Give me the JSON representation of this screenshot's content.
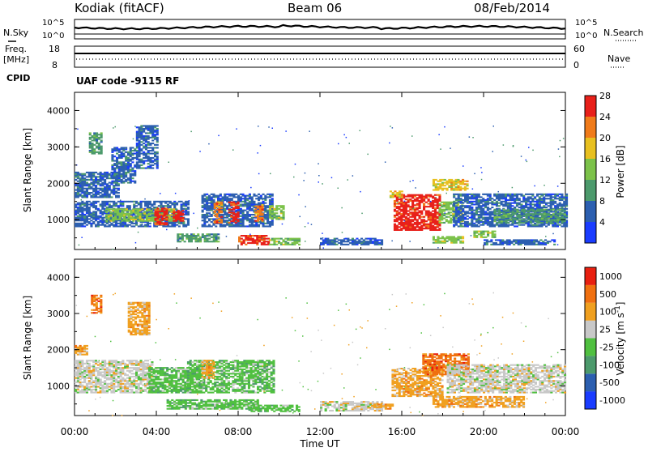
{
  "header": {
    "station": "Kodiak (fitACF)",
    "beam": "Beam 06",
    "date": "08/Feb/2014"
  },
  "left_labels": {
    "nsky": "N.Sky",
    "freq": "Freq.",
    "freq_unit": "[MHz]",
    "cpid": "CPID"
  },
  "right_labels": {
    "nsearch": "N.Search",
    "nave": "Nave"
  },
  "cpid_text": "UAF code -9115 RF",
  "noise_axis": {
    "top": "10^5",
    "bottom": "10^0",
    "right_top": "10^5",
    "right_bottom": "10^0"
  },
  "freq_axis": {
    "left_top": "18",
    "left_bottom": "8",
    "right_top": "60",
    "right_bottom": "0"
  },
  "chart_data": [
    {
      "type": "heatmap",
      "title": "",
      "ylabel": "Slant Range [km]",
      "xlabel": "",
      "ylim": [
        180,
        4500
      ],
      "yticks": [
        "1000",
        "2000",
        "3000",
        "4000"
      ],
      "colorbar": {
        "label": "Power [dB]",
        "ticks": [
          "4",
          "8",
          "12",
          "16",
          "20",
          "24",
          "28"
        ],
        "colors": [
          "#1a3cff",
          "#2c5fb0",
          "#4c9a6c",
          "#7cc24a",
          "#e8c020",
          "#f07b1a",
          "#e8201a"
        ]
      },
      "regions": [
        {
          "t0": 0.0,
          "t1": 5.6,
          "r0": 800,
          "r1": 1500,
          "level": 1
        },
        {
          "t0": 1.5,
          "t1": 5.0,
          "r0": 950,
          "r1": 1300,
          "level": 3
        },
        {
          "t0": 3.9,
          "t1": 4.5,
          "r0": 850,
          "r1": 1300,
          "level": 6
        },
        {
          "t0": 4.8,
          "t1": 5.3,
          "r0": 950,
          "r1": 1250,
          "level": 6
        },
        {
          "t0": 0.0,
          "t1": 2.2,
          "r0": 1600,
          "r1": 2300,
          "level": 1
        },
        {
          "t0": 0.7,
          "t1": 1.3,
          "r0": 2800,
          "r1": 3400,
          "level": 2
        },
        {
          "t0": 1.8,
          "t1": 3.0,
          "r0": 2000,
          "r1": 3000,
          "level": 1
        },
        {
          "t0": 3.0,
          "t1": 4.0,
          "r0": 2400,
          "r1": 3600,
          "level": 1
        },
        {
          "t0": 6.2,
          "t1": 9.7,
          "r0": 800,
          "r1": 1700,
          "level": 1
        },
        {
          "t0": 6.8,
          "t1": 7.2,
          "r0": 900,
          "r1": 1500,
          "level": 5
        },
        {
          "t0": 7.5,
          "t1": 8.0,
          "r0": 900,
          "r1": 1500,
          "level": 6
        },
        {
          "t0": 8.8,
          "t1": 9.2,
          "r0": 950,
          "r1": 1400,
          "level": 5
        },
        {
          "t0": 9.5,
          "t1": 10.2,
          "r0": 1000,
          "r1": 1400,
          "level": 3
        },
        {
          "t0": 5.0,
          "t1": 7.0,
          "r0": 380,
          "r1": 600,
          "level": 2
        },
        {
          "t0": 8.0,
          "t1": 9.5,
          "r0": 300,
          "r1": 550,
          "level": 6
        },
        {
          "t0": 9.5,
          "t1": 11.0,
          "r0": 300,
          "r1": 500,
          "level": 3
        },
        {
          "t0": 12.0,
          "t1": 15.0,
          "r0": 300,
          "r1": 500,
          "level": 1
        },
        {
          "t0": 15.6,
          "t1": 17.8,
          "r0": 700,
          "r1": 1700,
          "level": 6
        },
        {
          "t0": 15.4,
          "t1": 16.0,
          "r0": 1600,
          "r1": 1800,
          "level": 4
        },
        {
          "t0": 17.8,
          "t1": 19.0,
          "r0": 900,
          "r1": 1500,
          "level": 3
        },
        {
          "t0": 17.5,
          "t1": 19.2,
          "r0": 1800,
          "r1": 2100,
          "level": 4
        },
        {
          "t0": 18.5,
          "t1": 24.0,
          "r0": 800,
          "r1": 1700,
          "level": 1
        },
        {
          "t0": 20.5,
          "t1": 24.0,
          "r0": 900,
          "r1": 1300,
          "level": 2
        },
        {
          "t0": 19.5,
          "t1": 20.5,
          "r0": 500,
          "r1": 700,
          "level": 3
        },
        {
          "t0": 17.5,
          "t1": 19.0,
          "r0": 350,
          "r1": 550,
          "level": 3
        },
        {
          "t0": 20.0,
          "t1": 23.5,
          "r0": 300,
          "r1": 450,
          "level": 1
        }
      ]
    },
    {
      "type": "heatmap",
      "title": "",
      "ylabel": "Slant Range [km]",
      "xlabel": "Time UT",
      "ylim": [
        180,
        4500
      ],
      "yticks": [
        "1000",
        "2000",
        "3000",
        "4000"
      ],
      "xticks": [
        "00:00",
        "04:00",
        "08:00",
        "12:00",
        "16:00",
        "20:00",
        "00:00"
      ],
      "colorbar": {
        "label": "Velocity [m s^-1]",
        "ticks": [
          "1000",
          "500",
          "100",
          "25",
          "-25",
          "-100",
          "-500",
          "-1000"
        ],
        "colors": [
          "#1a3cff",
          "#2c5fb0",
          "#4c9a6c",
          "#50c040",
          "#c8c8c8",
          "#f0a020",
          "#f07010",
          "#e82010"
        ]
      },
      "regions": [
        {
          "t0": 0.0,
          "t1": 3.8,
          "r0": 800,
          "r1": 1700,
          "level": 4
        },
        {
          "t0": 0.0,
          "t1": 0.6,
          "r0": 1850,
          "r1": 2100,
          "level": 5
        },
        {
          "t0": 0.8,
          "t1": 1.3,
          "r0": 3000,
          "r1": 3500,
          "level": 6
        },
        {
          "t0": 3.6,
          "t1": 6.2,
          "r0": 800,
          "r1": 1500,
          "level": 3
        },
        {
          "t0": 2.6,
          "t1": 3.6,
          "r0": 2400,
          "r1": 3300,
          "level": 5
        },
        {
          "t0": 5.5,
          "t1": 9.7,
          "r0": 800,
          "r1": 1700,
          "level": 3
        },
        {
          "t0": 6.2,
          "t1": 6.8,
          "r0": 1200,
          "r1": 1700,
          "level": 5
        },
        {
          "t0": 4.5,
          "t1": 9.0,
          "r0": 350,
          "r1": 600,
          "level": 3
        },
        {
          "t0": 8.5,
          "t1": 11.0,
          "r0": 280,
          "r1": 450,
          "level": 3
        },
        {
          "t0": 12.0,
          "t1": 15.0,
          "r0": 300,
          "r1": 550,
          "level": 4
        },
        {
          "t0": 14.5,
          "t1": 15.5,
          "r0": 350,
          "r1": 500,
          "level": 5
        },
        {
          "t0": 15.5,
          "t1": 18.0,
          "r0": 700,
          "r1": 1500,
          "level": 5
        },
        {
          "t0": 17.0,
          "t1": 19.3,
          "r0": 1300,
          "r1": 1900,
          "level": 6
        },
        {
          "t0": 18.2,
          "t1": 24.0,
          "r0": 800,
          "r1": 1600,
          "level": 4
        },
        {
          "t0": 17.5,
          "t1": 22.0,
          "r0": 400,
          "r1": 700,
          "level": 5
        }
      ]
    }
  ]
}
